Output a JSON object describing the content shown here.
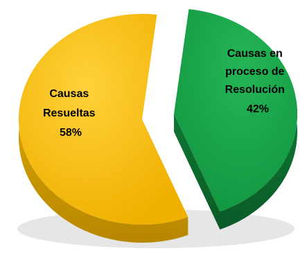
{
  "chart_data": {
    "type": "pie",
    "style": "3d-exploded",
    "slices": [
      {
        "label_lines": [
          "Causas",
          "Resueltas",
          "58%"
        ],
        "value": 58,
        "color": "#f2b705",
        "side_color": "#c99500"
      },
      {
        "label_lines": [
          "Causas en",
          "proceso de",
          "Resolución",
          "42%"
        ],
        "value": 42,
        "color": "#1aa34a",
        "side_color": "#0d6b2e"
      }
    ]
  }
}
